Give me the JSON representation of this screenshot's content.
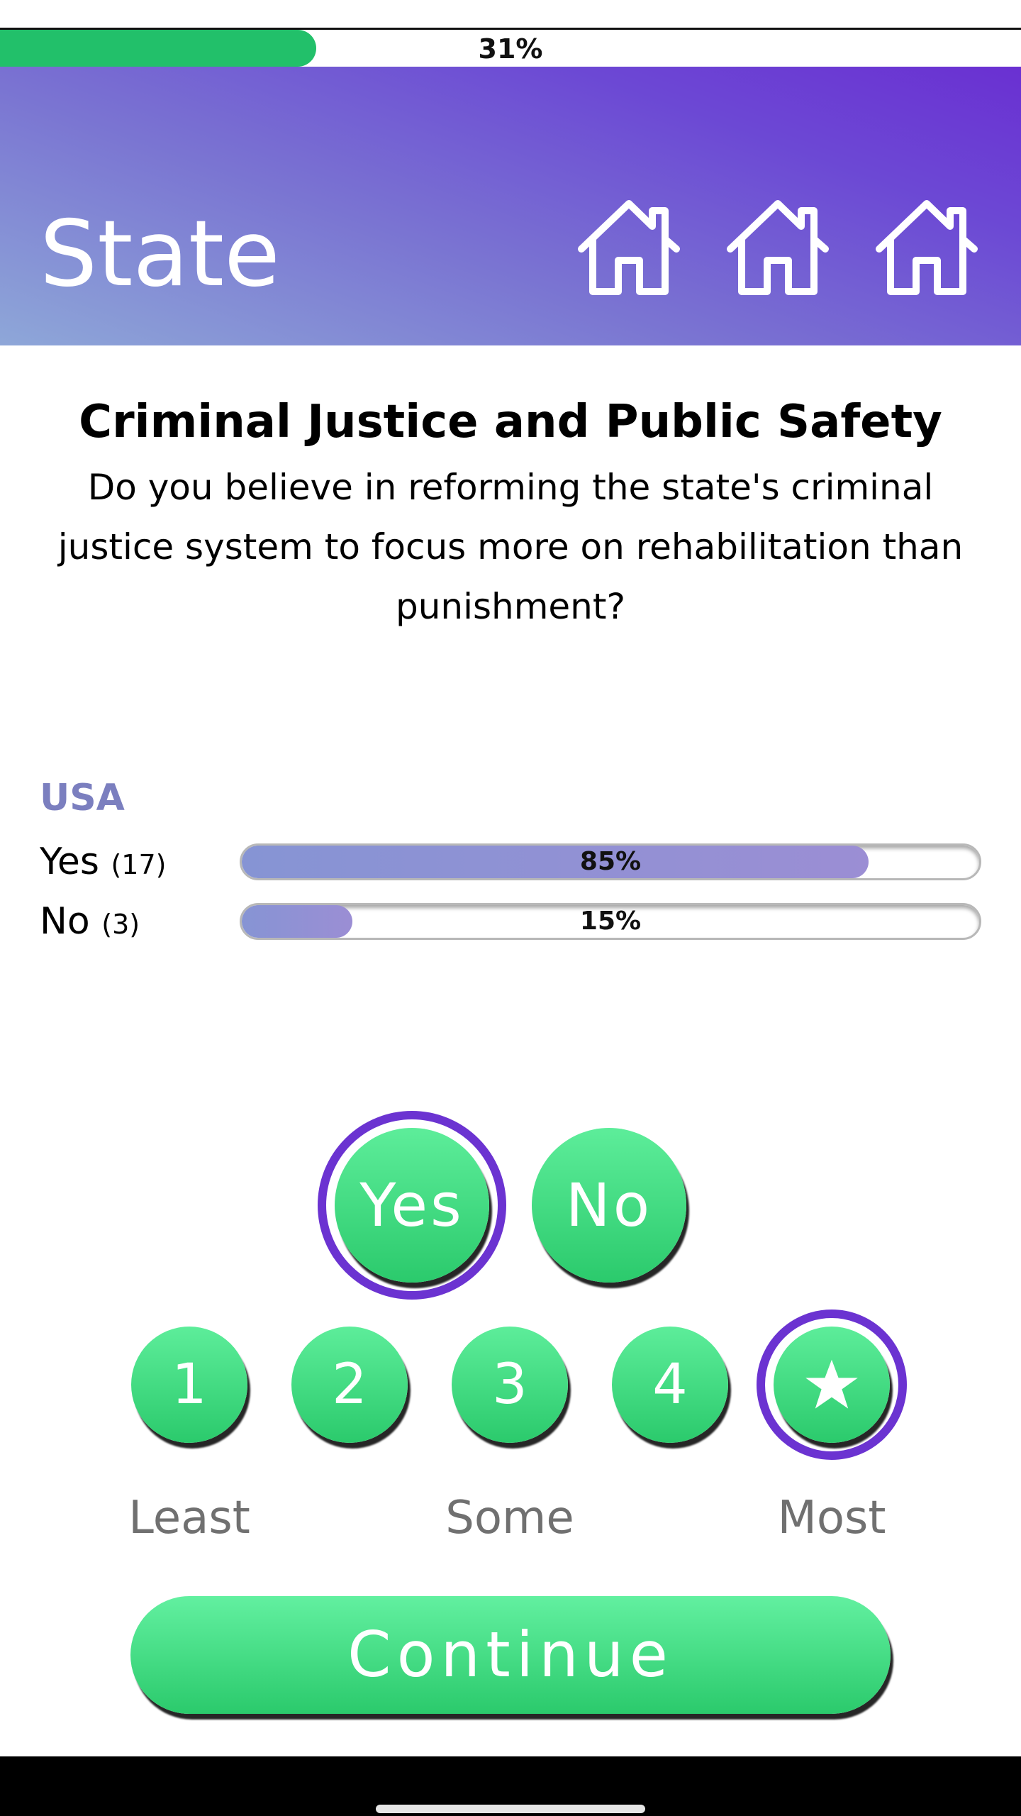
{
  "progress": {
    "label": "31%",
    "fraction": 0.31
  },
  "header": {
    "title": "State",
    "icons": [
      "home-icon",
      "home-icon",
      "home-icon"
    ]
  },
  "question": {
    "category": "Criminal Justice and Public Safety",
    "text": "Do you believe in reforming the state's criminal justice system to focus more on rehabilitation than punishment?"
  },
  "results": {
    "region": "USA",
    "rows": [
      {
        "label": "Yes",
        "count": "(17)",
        "percent_label": "85%",
        "fraction": 0.85
      },
      {
        "label": "No",
        "count": "(3)",
        "percent_label": "15%",
        "fraction": 0.15
      }
    ]
  },
  "answers": {
    "options": [
      {
        "label": "Yes",
        "selected": true
      },
      {
        "label": "No",
        "selected": false
      }
    ]
  },
  "importance": {
    "options": [
      {
        "label": "1",
        "selected": false
      },
      {
        "label": "2",
        "selected": false
      },
      {
        "label": "3",
        "selected": false
      },
      {
        "label": "4",
        "selected": false
      },
      {
        "label": "star-icon",
        "selected": true
      }
    ],
    "scale_labels": [
      "Least",
      "Some",
      "Most"
    ]
  },
  "continue_label": "Continue",
  "colors": {
    "accent_green": "#2bca6c",
    "selection_ring": "#6b33d1",
    "result_fill": "#8c92d4",
    "region_label": "#7b7fbf"
  }
}
